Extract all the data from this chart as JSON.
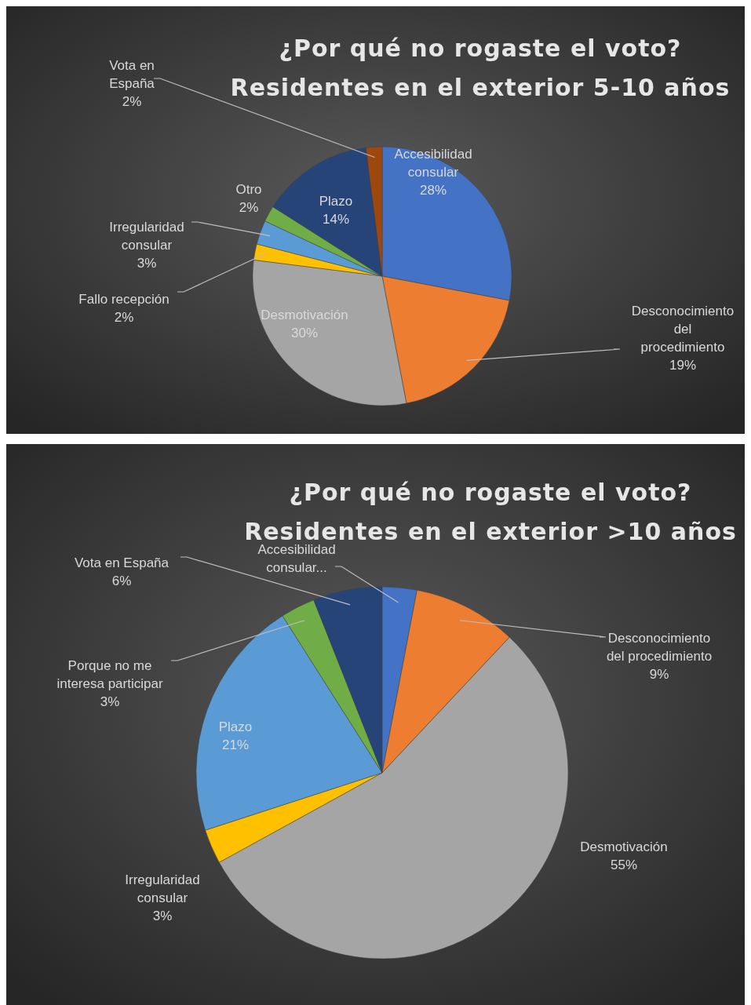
{
  "chart_data": [
    {
      "type": "pie",
      "title": "¿Por qué no rogaste el voto?\nResidentes en el exterior 5-10 años",
      "categories": [
        "Accesibilidad consular",
        "Desconocimiento del procedimiento",
        "Desmotivación",
        "Fallo recepción",
        "Irregularidad consular",
        "Otro",
        "Plazo",
        "Vota en España"
      ],
      "values": [
        28,
        19,
        30,
        2,
        3,
        2,
        14,
        2
      ],
      "colors": [
        "#4472c4",
        "#ed7d31",
        "#a5a5a5",
        "#ffc000",
        "#5b9bd5",
        "#70ad47",
        "#264478",
        "#9e480e"
      ],
      "value_labels": [
        "28%",
        "19%",
        "30%",
        "2%",
        "3%",
        "2%",
        "14%",
        "2%"
      ]
    },
    {
      "type": "pie",
      "title": "¿Por qué no rogaste el voto?\nResidentes en el exterior >10 años",
      "categories": [
        "Accesibilidad consular...",
        "Desconocimiento del procedimiento",
        "Desmotivación",
        "Irregularidad consular",
        "Plazo",
        "Porque no me interesa participar",
        "Vota en España"
      ],
      "values": [
        3,
        9,
        55,
        3,
        21,
        3,
        6
      ],
      "colors": [
        "#4472c4",
        "#ed7d31",
        "#a5a5a5",
        "#ffc000",
        "#5b9bd5",
        "#70ad47",
        "#264478"
      ],
      "value_labels": [
        null,
        "9%",
        "55%",
        "3%",
        "21%",
        "3%",
        "6%"
      ]
    }
  ]
}
